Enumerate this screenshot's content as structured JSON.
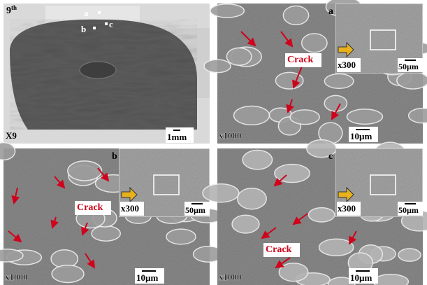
{
  "overview": {
    "label": "9",
    "label_sup": "th",
    "points": [
      "a",
      "b",
      "c"
    ],
    "magnification": "X9",
    "scale": "1mm"
  },
  "panels": [
    {
      "label": "a",
      "crack": "Crack",
      "inset_magnification": "x300",
      "inset_scale": "50µm",
      "magnification": "x1000",
      "scale": "10µm"
    },
    {
      "label": "b",
      "crack": "Crack",
      "inset_magnification": "x300",
      "inset_scale": "50µm",
      "magnification": "x1000",
      "scale": "10µm"
    },
    {
      "label": "c",
      "crack": "Crack",
      "inset_magnification": "x300",
      "inset_scale": "50µm",
      "magnification": "x1000",
      "scale": "10µm"
    }
  ]
}
